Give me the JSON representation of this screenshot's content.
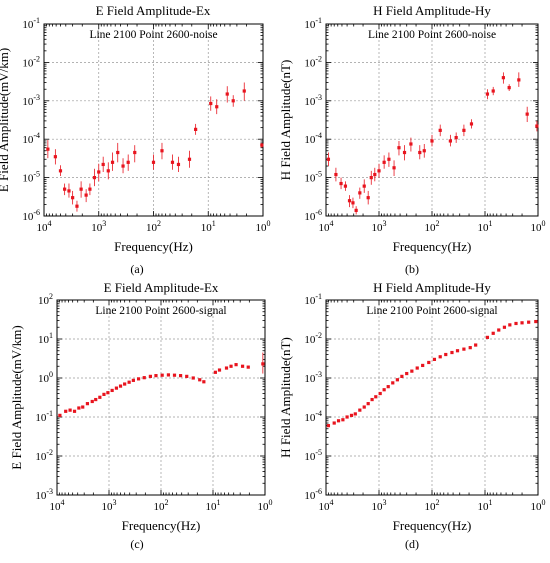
{
  "figure": {
    "panels": [
      {
        "label": "(a)"
      },
      {
        "label": "(b)"
      },
      {
        "label": "(c)"
      },
      {
        "label": "(d)"
      }
    ]
  },
  "chart_data": [
    {
      "type": "scatter",
      "title": "E Field Amplitude-Ex",
      "annotation": "Line 2100 Point 2600-noise",
      "xlabel": "Frequency(Hz)",
      "ylabel": "E Field Amplitude(mV/km)",
      "x_scale": "log",
      "y_scale": "log",
      "x_reversed": true,
      "xlim": [
        10000,
        1
      ],
      "ylim": [
        1e-06,
        0.1
      ],
      "x_ticks": [
        {
          "value": 10000,
          "mant": "10",
          "exp": "4"
        },
        {
          "value": 1000,
          "mant": "10",
          "exp": "3"
        },
        {
          "value": 100,
          "mant": "10",
          "exp": "2"
        },
        {
          "value": 10,
          "mant": "10",
          "exp": "1"
        },
        {
          "value": 1,
          "mant": "10",
          "exp": "0"
        }
      ],
      "y_ticks": [
        {
          "value": 1e-06,
          "mant": "10",
          "exp": "-6"
        },
        {
          "value": 1e-05,
          "mant": "10",
          "exp": "-5"
        },
        {
          "value": 0.0001,
          "mant": "10",
          "exp": "-4"
        },
        {
          "value": 0.001,
          "mant": "10",
          "exp": "-3"
        },
        {
          "value": 0.01,
          "mant": "10",
          "exp": "-2"
        },
        {
          "value": 0.1,
          "mant": "10",
          "exp": "-1"
        }
      ],
      "grid": true,
      "marker_color": "#e8141e",
      "points": [
        {
          "x": 8500,
          "y": 5.5e-05,
          "lo": 3.2e-05,
          "hi": 9.5e-05
        },
        {
          "x": 6200,
          "y": 3.5e-05,
          "lo": 2.2e-05,
          "hi": 5.5e-05
        },
        {
          "x": 5000,
          "y": 1.5e-05,
          "lo": 1.1e-05,
          "hi": 2.1e-05
        },
        {
          "x": 4200,
          "y": 5e-06,
          "lo": 3.5e-06,
          "hi": 7e-06
        },
        {
          "x": 3500,
          "y": 4.5e-06,
          "lo": 3e-06,
          "hi": 7e-06
        },
        {
          "x": 3000,
          "y": 3e-06,
          "lo": 2e-06,
          "hi": 4.5e-06
        },
        {
          "x": 2500,
          "y": 1.8e-06,
          "lo": 1.3e-06,
          "hi": 2.5e-06
        },
        {
          "x": 2100,
          "y": 5e-06,
          "lo": 3e-06,
          "hi": 8e-06
        },
        {
          "x": 1700,
          "y": 3.5e-06,
          "lo": 2.3e-06,
          "hi": 5e-06
        },
        {
          "x": 1450,
          "y": 5e-06,
          "lo": 3.5e-06,
          "hi": 7e-06
        },
        {
          "x": 1200,
          "y": 1e-05,
          "lo": 6e-06,
          "hi": 1.7e-05
        },
        {
          "x": 1000,
          "y": 1.4e-05,
          "lo": 8e-06,
          "hi": 2.3e-05
        },
        {
          "x": 830,
          "y": 2.2e-05,
          "lo": 1.4e-05,
          "hi": 3.5e-05
        },
        {
          "x": 670,
          "y": 1.5e-05,
          "lo": 9e-06,
          "hi": 2.5e-05
        },
        {
          "x": 560,
          "y": 2.5e-05,
          "lo": 1.5e-05,
          "hi": 4.5e-05
        },
        {
          "x": 450,
          "y": 4.5e-05,
          "lo": 2.5e-05,
          "hi": 8e-05
        },
        {
          "x": 360,
          "y": 2e-05,
          "lo": 1.3e-05,
          "hi": 3.2e-05
        },
        {
          "x": 290,
          "y": 2.5e-05,
          "lo": 1.5e-05,
          "hi": 4e-05
        },
        {
          "x": 220,
          "y": 4.5e-05,
          "lo": 2.5e-05,
          "hi": 7e-05
        },
        {
          "x": 100,
          "y": 2.5e-05,
          "lo": 1.6e-05,
          "hi": 4e-05
        },
        {
          "x": 70,
          "y": 5e-05,
          "lo": 3e-05,
          "hi": 8e-05
        },
        {
          "x": 45,
          "y": 2.5e-05,
          "lo": 1.6e-05,
          "hi": 4e-05
        },
        {
          "x": 35,
          "y": 2.2e-05,
          "lo": 1.4e-05,
          "hi": 3.5e-05
        },
        {
          "x": 22,
          "y": 3e-05,
          "lo": 1.8e-05,
          "hi": 5e-05
        },
        {
          "x": 17,
          "y": 0.00018,
          "lo": 0.00013,
          "hi": 0.00025
        },
        {
          "x": 9,
          "y": 0.00085,
          "lo": 0.00055,
          "hi": 0.0013
        },
        {
          "x": 7,
          "y": 0.0007,
          "lo": 0.00045,
          "hi": 0.0011
        },
        {
          "x": 4.5,
          "y": 0.0015,
          "lo": 0.0009,
          "hi": 0.0024
        },
        {
          "x": 3.5,
          "y": 0.001,
          "lo": 0.0007,
          "hi": 0.0014
        },
        {
          "x": 2.2,
          "y": 0.0018,
          "lo": 0.001,
          "hi": 0.003
        },
        {
          "x": 1.05,
          "y": 7e-05,
          "lo": 6e-05,
          "hi": 8e-05
        }
      ]
    },
    {
      "type": "scatter",
      "title": "H Field Amplitude-Hy",
      "annotation": "Line 2100 Point 2600-noise",
      "xlabel": "Frequency(Hz)",
      "ylabel": "H Field Amplitude(nT)",
      "x_scale": "log",
      "y_scale": "log",
      "x_reversed": true,
      "xlim": [
        10000,
        1
      ],
      "ylim": [
        1e-06,
        0.1
      ],
      "x_ticks": [
        {
          "value": 10000,
          "mant": "10",
          "exp": "4"
        },
        {
          "value": 1000,
          "mant": "10",
          "exp": "3"
        },
        {
          "value": 100,
          "mant": "10",
          "exp": "2"
        },
        {
          "value": 10,
          "mant": "10",
          "exp": "1"
        },
        {
          "value": 1,
          "mant": "10",
          "exp": "0"
        }
      ],
      "y_ticks": [
        {
          "value": 1e-06,
          "mant": "10",
          "exp": "-6"
        },
        {
          "value": 1e-05,
          "mant": "10",
          "exp": "-5"
        },
        {
          "value": 0.0001,
          "mant": "10",
          "exp": "-4"
        },
        {
          "value": 0.001,
          "mant": "10",
          "exp": "-3"
        },
        {
          "value": 0.01,
          "mant": "10",
          "exp": "-2"
        },
        {
          "value": 0.1,
          "mant": "10",
          "exp": "-1"
        }
      ],
      "grid": true,
      "marker_color": "#e8141e",
      "points": [
        {
          "x": 9000,
          "y": 3e-05,
          "lo": 2e-05,
          "hi": 4.5e-05
        },
        {
          "x": 6500,
          "y": 1.2e-05,
          "lo": 8e-06,
          "hi": 1.8e-05
        },
        {
          "x": 5200,
          "y": 7e-06,
          "lo": 5e-06,
          "hi": 1e-05
        },
        {
          "x": 4300,
          "y": 6e-06,
          "lo": 4.5e-06,
          "hi": 8e-06
        },
        {
          "x": 3600,
          "y": 2.5e-06,
          "lo": 1.7e-06,
          "hi": 3.5e-06
        },
        {
          "x": 3100,
          "y": 2.2e-06,
          "lo": 1.6e-06,
          "hi": 3e-06
        },
        {
          "x": 2700,
          "y": 1.4e-06,
          "lo": 1.1e-06,
          "hi": 1.8e-06
        },
        {
          "x": 2300,
          "y": 4e-06,
          "lo": 2.8e-06,
          "hi": 5.5e-06
        },
        {
          "x": 1900,
          "y": 6e-06,
          "lo": 4e-06,
          "hi": 9e-06
        },
        {
          "x": 1600,
          "y": 3e-06,
          "lo": 2e-06,
          "hi": 4.5e-06
        },
        {
          "x": 1400,
          "y": 1e-05,
          "lo": 6.5e-06,
          "hi": 1.5e-05
        },
        {
          "x": 1200,
          "y": 1.2e-05,
          "lo": 8e-06,
          "hi": 1.8e-05
        },
        {
          "x": 1000,
          "y": 1.5e-05,
          "lo": 1e-05,
          "hi": 2.3e-05
        },
        {
          "x": 800,
          "y": 2.5e-05,
          "lo": 1.7e-05,
          "hi": 3.8e-05
        },
        {
          "x": 650,
          "y": 3e-05,
          "lo": 1.9e-05,
          "hi": 4.5e-05
        },
        {
          "x": 520,
          "y": 1.8e-05,
          "lo": 1.1e-05,
          "hi": 2.8e-05
        },
        {
          "x": 420,
          "y": 6e-05,
          "lo": 3.8e-05,
          "hi": 9e-05
        },
        {
          "x": 330,
          "y": 4.5e-05,
          "lo": 2.8e-05,
          "hi": 7e-05
        },
        {
          "x": 250,
          "y": 7.5e-05,
          "lo": 4.8e-05,
          "hi": 0.00011
        },
        {
          "x": 170,
          "y": 4.5e-05,
          "lo": 3e-05,
          "hi": 7e-05
        },
        {
          "x": 140,
          "y": 5e-05,
          "lo": 3.3e-05,
          "hi": 7.5e-05
        },
        {
          "x": 100,
          "y": 9e-05,
          "lo": 6.5e-05,
          "hi": 0.00013
        },
        {
          "x": 70,
          "y": 0.00017,
          "lo": 0.00012,
          "hi": 0.00024
        },
        {
          "x": 45,
          "y": 9e-05,
          "lo": 6.5e-05,
          "hi": 0.00013
        },
        {
          "x": 35,
          "y": 0.00011,
          "lo": 8e-05,
          "hi": 0.00015
        },
        {
          "x": 25,
          "y": 0.00017,
          "lo": 0.00012,
          "hi": 0.00024
        },
        {
          "x": 18,
          "y": 0.00025,
          "lo": 0.00019,
          "hi": 0.00033
        },
        {
          "x": 9,
          "y": 0.0015,
          "lo": 0.0011,
          "hi": 0.002
        },
        {
          "x": 7,
          "y": 0.0018,
          "lo": 0.0014,
          "hi": 0.0023
        },
        {
          "x": 4.5,
          "y": 0.004,
          "lo": 0.0028,
          "hi": 0.0055
        },
        {
          "x": 3.5,
          "y": 0.0022,
          "lo": 0.0018,
          "hi": 0.0027
        },
        {
          "x": 2.3,
          "y": 0.0035,
          "lo": 0.0023,
          "hi": 0.0055
        },
        {
          "x": 1.6,
          "y": 0.00045,
          "lo": 0.00028,
          "hi": 0.0007
        },
        {
          "x": 1.05,
          "y": 0.00022,
          "lo": 0.00016,
          "hi": 0.0003
        }
      ]
    },
    {
      "type": "scatter",
      "title": "E Field Amplitude-Ex",
      "annotation": "Line 2100 Point 2600-signal",
      "xlabel": "Frequency(Hz)",
      "ylabel": "E Field Amplitude(mV/km)",
      "x_scale": "log",
      "y_scale": "log",
      "x_reversed": true,
      "xlim": [
        10000,
        1
      ],
      "ylim": [
        0.001,
        100
      ],
      "x_ticks": [
        {
          "value": 10000,
          "mant": "10",
          "exp": "4"
        },
        {
          "value": 1000,
          "mant": "10",
          "exp": "3"
        },
        {
          "value": 100,
          "mant": "10",
          "exp": "2"
        },
        {
          "value": 10,
          "mant": "10",
          "exp": "1"
        },
        {
          "value": 1,
          "mant": "10",
          "exp": "0"
        }
      ],
      "y_ticks": [
        {
          "value": 0.001,
          "mant": "10",
          "exp": "-3"
        },
        {
          "value": 0.01,
          "mant": "10",
          "exp": "-2"
        },
        {
          "value": 0.1,
          "mant": "10",
          "exp": "-1"
        },
        {
          "value": 1,
          "mant": "10",
          "exp": "0"
        },
        {
          "value": 10,
          "mant": "10",
          "exp": "1"
        },
        {
          "value": 100,
          "mant": "10",
          "exp": "2"
        }
      ],
      "grid": true,
      "marker_color": "#e8141e",
      "points": [
        {
          "x": 8800,
          "y": 0.11
        },
        {
          "x": 6800,
          "y": 0.14
        },
        {
          "x": 5600,
          "y": 0.15
        },
        {
          "x": 4600,
          "y": 0.14
        },
        {
          "x": 3800,
          "y": 0.17
        },
        {
          "x": 3200,
          "y": 0.18
        },
        {
          "x": 2600,
          "y": 0.22
        },
        {
          "x": 2100,
          "y": 0.25
        },
        {
          "x": 1800,
          "y": 0.28
        },
        {
          "x": 1500,
          "y": 0.32
        },
        {
          "x": 1250,
          "y": 0.38
        },
        {
          "x": 1050,
          "y": 0.42
        },
        {
          "x": 870,
          "y": 0.48
        },
        {
          "x": 720,
          "y": 0.55
        },
        {
          "x": 600,
          "y": 0.62
        },
        {
          "x": 500,
          "y": 0.7
        },
        {
          "x": 410,
          "y": 0.78
        },
        {
          "x": 340,
          "y": 0.87
        },
        {
          "x": 270,
          "y": 0.95
        },
        {
          "x": 210,
          "y": 1.02
        },
        {
          "x": 160,
          "y": 1.1
        },
        {
          "x": 125,
          "y": 1.15
        },
        {
          "x": 95,
          "y": 1.18
        },
        {
          "x": 72,
          "y": 1.2
        },
        {
          "x": 55,
          "y": 1.18
        },
        {
          "x": 42,
          "y": 1.15
        },
        {
          "x": 32,
          "y": 1.1
        },
        {
          "x": 24,
          "y": 1.0
        },
        {
          "x": 18,
          "y": 0.9
        },
        {
          "x": 15,
          "y": 0.8
        },
        {
          "x": 9,
          "y": 1.4
        },
        {
          "x": 7.5,
          "y": 1.6
        },
        {
          "x": 5.5,
          "y": 1.8
        },
        {
          "x": 4.5,
          "y": 2.0
        },
        {
          "x": 3.6,
          "y": 2.2
        },
        {
          "x": 2.7,
          "y": 2.0
        },
        {
          "x": 2.1,
          "y": 1.9
        },
        {
          "x": 1.1,
          "y": 2.3,
          "lo": 1.3,
          "hi": 4.5
        }
      ]
    },
    {
      "type": "scatter",
      "title": "H Field Amplitude-Hy",
      "annotation": "Line 2100 Point 2600-signal",
      "xlabel": "Frequency(Hz)",
      "ylabel": "H Field Amplitude(nT)",
      "x_scale": "log",
      "y_scale": "log",
      "x_reversed": true,
      "xlim": [
        10000,
        1
      ],
      "ylim": [
        1e-06,
        0.1
      ],
      "x_ticks": [
        {
          "value": 10000,
          "mant": "10",
          "exp": "4"
        },
        {
          "value": 1000,
          "mant": "10",
          "exp": "3"
        },
        {
          "value": 100,
          "mant": "10",
          "exp": "2"
        },
        {
          "value": 10,
          "mant": "10",
          "exp": "1"
        },
        {
          "value": 1,
          "mant": "10",
          "exp": "0"
        }
      ],
      "y_ticks": [
        {
          "value": 1e-06,
          "mant": "10",
          "exp": "-6"
        },
        {
          "value": 1e-05,
          "mant": "10",
          "exp": "-5"
        },
        {
          "value": 0.0001,
          "mant": "10",
          "exp": "-4"
        },
        {
          "value": 0.001,
          "mant": "10",
          "exp": "-3"
        },
        {
          "value": 0.01,
          "mant": "10",
          "exp": "-2"
        },
        {
          "value": 0.1,
          "mant": "10",
          "exp": "-1"
        }
      ],
      "grid": true,
      "marker_color": "#e8141e",
      "points": [
        {
          "x": 9000,
          "y": 6e-05
        },
        {
          "x": 7000,
          "y": 7e-05
        },
        {
          "x": 5800,
          "y": 8e-05
        },
        {
          "x": 4800,
          "y": 8.5e-05
        },
        {
          "x": 4000,
          "y": 0.0001
        },
        {
          "x": 3300,
          "y": 0.00011
        },
        {
          "x": 2800,
          "y": 0.00012
        },
        {
          "x": 2300,
          "y": 0.00015
        },
        {
          "x": 1900,
          "y": 0.00018
        },
        {
          "x": 1600,
          "y": 0.00022
        },
        {
          "x": 1350,
          "y": 0.00028
        },
        {
          "x": 1150,
          "y": 0.00033
        },
        {
          "x": 950,
          "y": 0.0004
        },
        {
          "x": 800,
          "y": 0.0005
        },
        {
          "x": 670,
          "y": 0.0006
        },
        {
          "x": 550,
          "y": 0.00075
        },
        {
          "x": 450,
          "y": 0.0009
        },
        {
          "x": 370,
          "y": 0.0011
        },
        {
          "x": 300,
          "y": 0.0013
        },
        {
          "x": 240,
          "y": 0.0015
        },
        {
          "x": 190,
          "y": 0.0018
        },
        {
          "x": 150,
          "y": 0.0021
        },
        {
          "x": 115,
          "y": 0.0025
        },
        {
          "x": 90,
          "y": 0.003
        },
        {
          "x": 70,
          "y": 0.0035
        },
        {
          "x": 55,
          "y": 0.004
        },
        {
          "x": 42,
          "y": 0.0045
        },
        {
          "x": 33,
          "y": 0.005
        },
        {
          "x": 25,
          "y": 0.0055
        },
        {
          "x": 19,
          "y": 0.006
        },
        {
          "x": 15,
          "y": 0.007
        },
        {
          "x": 9,
          "y": 0.011
        },
        {
          "x": 7,
          "y": 0.014
        },
        {
          "x": 5.5,
          "y": 0.017
        },
        {
          "x": 4.3,
          "y": 0.02
        },
        {
          "x": 3.4,
          "y": 0.023
        },
        {
          "x": 2.6,
          "y": 0.025
        },
        {
          "x": 2.0,
          "y": 0.026
        },
        {
          "x": 1.5,
          "y": 0.027
        },
        {
          "x": 1.1,
          "y": 0.028
        }
      ]
    }
  ]
}
